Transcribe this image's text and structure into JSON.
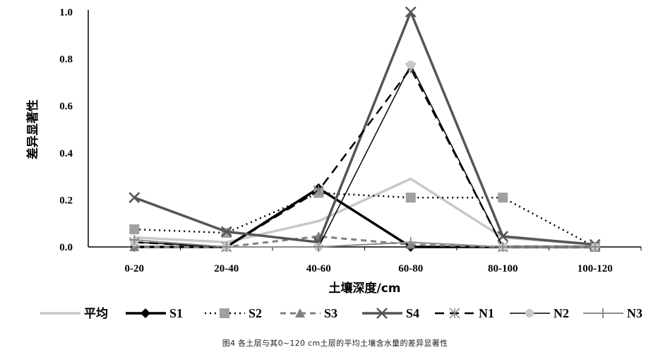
{
  "caption": "图4   各土层与其0~120 cm土层的平均土壤含水量的差异显著性",
  "chart_data": {
    "type": "line",
    "xlabel": "土壤深度/cm",
    "ylabel": "差异显著性",
    "categories": [
      "0-20",
      "20-40",
      "40-60",
      "60-80",
      "80-100",
      "100-120"
    ],
    "ylim": [
      0,
      1.0
    ],
    "yticks": [
      "0.0",
      "0.2",
      "0.4",
      "0.6",
      "0.8",
      "1.0"
    ],
    "legend_position": "bottom",
    "grid": false,
    "series": [
      {
        "name": "平均",
        "values": [
          0.04,
          0.02,
          0.11,
          0.29,
          0.04,
          0.01
        ],
        "color": "#c8c8c8",
        "dash": "",
        "marker": "none",
        "width": 3.5
      },
      {
        "name": "S1",
        "values": [
          0.0,
          0.0,
          0.25,
          0.0,
          0.0,
          0.0
        ],
        "color": "#000000",
        "dash": "",
        "marker": "diamond",
        "width": 3.5
      },
      {
        "name": "S2",
        "values": [
          0.075,
          0.06,
          0.23,
          0.21,
          0.21,
          0.0
        ],
        "color": "#000000",
        "dash": "2,5",
        "marker": "square",
        "width": 2.5,
        "marker_color": "#a0a0a0"
      },
      {
        "name": "S3",
        "values": [
          0.0,
          0.0,
          0.045,
          0.01,
          0.0,
          0.0
        ],
        "color": "#808080",
        "dash": "8,6",
        "marker": "triangle",
        "width": 3
      },
      {
        "name": "S4",
        "values": [
          0.21,
          0.065,
          0.02,
          1.0,
          0.045,
          0.01
        ],
        "color": "#555555",
        "dash": "",
        "marker": "x",
        "width": 3.5
      },
      {
        "name": "N1",
        "values": [
          0.02,
          0.0,
          0.24,
          0.76,
          0.0,
          0.0
        ],
        "color": "#000000",
        "dash": "13,8",
        "marker": "star",
        "width": 2.5
      },
      {
        "name": "N2",
        "values": [
          0.02,
          0.0,
          0.0,
          0.775,
          0.0,
          0.0
        ],
        "color": "#000000",
        "dash": "",
        "marker": "circle",
        "width": 1.5,
        "marker_color": "#c8c8c8"
      },
      {
        "name": "N3",
        "values": [
          0.03,
          0.0,
          0.0,
          0.02,
          0.0,
          0.0
        ],
        "color": "#8c8c8c",
        "dash": "",
        "marker": "plus",
        "width": 2
      }
    ]
  }
}
